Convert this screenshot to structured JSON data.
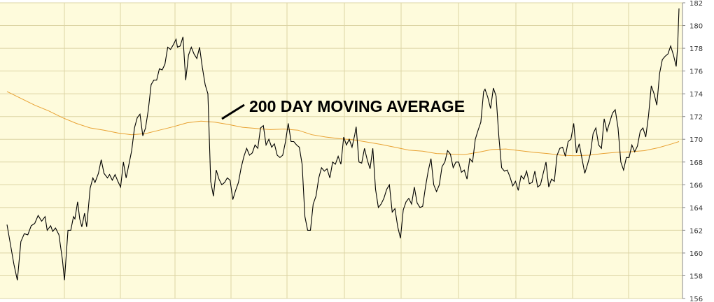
{
  "chart_data": {
    "type": "line",
    "title": "",
    "xlabel": "",
    "ylabel": "",
    "ylim": [
      156,
      182
    ],
    "yticks": [
      "156",
      "158",
      "160",
      "162",
      "164",
      "166",
      "168",
      "170",
      "172",
      "174",
      "176",
      "178",
      "180",
      "182"
    ],
    "grid": true,
    "x": [
      0,
      2,
      4,
      6,
      8,
      10,
      12,
      14,
      16,
      18,
      20,
      22,
      24,
      26,
      28,
      30,
      32,
      34,
      36,
      38,
      40,
      42,
      44,
      46,
      48,
      50,
      52,
      54,
      56,
      58,
      60,
      62,
      64,
      66,
      68,
      70,
      72,
      74,
      76,
      78,
      80,
      82,
      84,
      86,
      88,
      90,
      92,
      94,
      96,
      98,
      100,
      102,
      104,
      106,
      108,
      110,
      112,
      114,
      116,
      118,
      120,
      122,
      124,
      126,
      128,
      130,
      132,
      134,
      136,
      138,
      140,
      142,
      144,
      146,
      148,
      150,
      152,
      154,
      156,
      158,
      160,
      162,
      164,
      166,
      168,
      170,
      172,
      174,
      176,
      178,
      180,
      182,
      184,
      186,
      188,
      190,
      192,
      194,
      196,
      198,
      200,
      202,
      204,
      206,
      208,
      210,
      212,
      214,
      216,
      218,
      220,
      222,
      224,
      226,
      228,
      230,
      232,
      234,
      236,
      238,
      240,
      242,
      244,
      246,
      248,
      250,
      252,
      254,
      256,
      258,
      260,
      262,
      264,
      266,
      268,
      270,
      272,
      274,
      276,
      278,
      280,
      282,
      284,
      286,
      288,
      290,
      292,
      294,
      296,
      298,
      300,
      302,
      304,
      306,
      308,
      310,
      312,
      314,
      316,
      318,
      320,
      322,
      324,
      326,
      328,
      330,
      332,
      334,
      336,
      338,
      340,
      342,
      344,
      346,
      348,
      350,
      352,
      354,
      356,
      358,
      360,
      362,
      364,
      366,
      368,
      370,
      372,
      374,
      376,
      378,
      380,
      382,
      384,
      386,
      388,
      390,
      392,
      394,
      396,
      398,
      400,
      402,
      404,
      406,
      408,
      410,
      412,
      414,
      416,
      418,
      420,
      422,
      424,
      426,
      428,
      430,
      432,
      434,
      436,
      438,
      440,
      442,
      444,
      446,
      448,
      450,
      452,
      454,
      456,
      458,
      460,
      462,
      464,
      466,
      468,
      470,
      472,
      474,
      476,
      478,
      480,
      482,
      484,
      486,
      488,
      490,
      492,
      494,
      496,
      498,
      500,
      502,
      504,
      506,
      508,
      510,
      512,
      514,
      516,
      518,
      520,
      522,
      524,
      526,
      528,
      530,
      532,
      534,
      536,
      538,
      540,
      542,
      544,
      546,
      548,
      550,
      552,
      554,
      556,
      558,
      560,
      562,
      564,
      566,
      568,
      570,
      572,
      574,
      576,
      578,
      580,
      582,
      584,
      586,
      588,
      590,
      592,
      594,
      596,
      598,
      600,
      602,
      604,
      606,
      608,
      610,
      612,
      614,
      616,
      618,
      620,
      622,
      624,
      626,
      628,
      630,
      632,
      634,
      636,
      638,
      640,
      642,
      644,
      646,
      648,
      650,
      652,
      654,
      656,
      658,
      660,
      662,
      664,
      666,
      668,
      670,
      672,
      674,
      676,
      678,
      680,
      682,
      684,
      686,
      688,
      690,
      692,
      694,
      696,
      698,
      700,
      702,
      704,
      706,
      708,
      710,
      712,
      714,
      716,
      718,
      720,
      722,
      724,
      726,
      728,
      730,
      732,
      734,
      736,
      738,
      740,
      742,
      744,
      746,
      748,
      750,
      752,
      754,
      756,
      758,
      760,
      762,
      764,
      766,
      768,
      770,
      772,
      774,
      776,
      778,
      780,
      782,
      784,
      786,
      788,
      790,
      792,
      794,
      796,
      798,
      800,
      802,
      804,
      806,
      808,
      810,
      812,
      814,
      816,
      818,
      820,
      822,
      824,
      826,
      828,
      830,
      832,
      834,
      836,
      838,
      840,
      842,
      844,
      846,
      848,
      850,
      852,
      854,
      856,
      858,
      860,
      862,
      864,
      866,
      868,
      870,
      872,
      874,
      876,
      878,
      880,
      882,
      884,
      886,
      888,
      890,
      892,
      894,
      896,
      898,
      900,
      902,
      904,
      906,
      908,
      910,
      912,
      914,
      916,
      918,
      920,
      922,
      924,
      926,
      928,
      930,
      932,
      934,
      936,
      938,
      940,
      942,
      944,
      946,
      948,
      950,
      952,
      954,
      956,
      958,
      960,
      962,
      964,
      966,
      968,
      970
    ],
    "price_points": [
      [
        0,
        162.5
      ],
      [
        10,
        159
      ],
      [
        15,
        157.6
      ],
      [
        20,
        161
      ],
      [
        25,
        161.7
      ],
      [
        30,
        161.6
      ],
      [
        35,
        162.4
      ],
      [
        40,
        162.6
      ],
      [
        45,
        163.3
      ],
      [
        50,
        162.8
      ],
      [
        55,
        163.2
      ],
      [
        58,
        162
      ],
      [
        63,
        162.4
      ],
      [
        66,
        161.9
      ],
      [
        70,
        162.2
      ],
      [
        75,
        161.6
      ],
      [
        80,
        159.4
      ],
      [
        83,
        157.6
      ],
      [
        88,
        162
      ],
      [
        92,
        162
      ],
      [
        96,
        163.2
      ],
      [
        98,
        163
      ],
      [
        102,
        164.5
      ],
      [
        105,
        163
      ],
      [
        108,
        162.3
      ],
      [
        112,
        163.5
      ],
      [
        115,
        162.3
      ],
      [
        120,
        165.7
      ],
      [
        124,
        166.6
      ],
      [
        127,
        166.2
      ],
      [
        132,
        167
      ],
      [
        136,
        168.2
      ],
      [
        140,
        167
      ],
      [
        145,
        166.6
      ],
      [
        148,
        166.9
      ],
      [
        152,
        166.4
      ],
      [
        156,
        166.9
      ],
      [
        160,
        166.3
      ],
      [
        164,
        165.8
      ],
      [
        168,
        168
      ],
      [
        172,
        166.6
      ],
      [
        176,
        167.8
      ],
      [
        180,
        169
      ],
      [
        184,
        171
      ],
      [
        188,
        171.9
      ],
      [
        192,
        172.2
      ],
      [
        196,
        170.3
      ],
      [
        200,
        171
      ],
      [
        204,
        172.6
      ],
      [
        208,
        174.8
      ],
      [
        212,
        175.2
      ],
      [
        216,
        175.2
      ],
      [
        220,
        176.2
      ],
      [
        224,
        176.1
      ],
      [
        228,
        176.6
      ],
      [
        232,
        178.1
      ],
      [
        236,
        177.9
      ],
      [
        240,
        178.3
      ],
      [
        244,
        178.8
      ],
      [
        246,
        178.1
      ],
      [
        250,
        178.2
      ],
      [
        254,
        179
      ],
      [
        258,
        175.2
      ],
      [
        262,
        177.4
      ],
      [
        266,
        178.1
      ],
      [
        270,
        177.5
      ],
      [
        274,
        177.1
      ],
      [
        278,
        178.1
      ],
      [
        282,
        176.3
      ],
      [
        286,
        174.8
      ],
      [
        290,
        174
      ],
      [
        294,
        166.3
      ],
      [
        298,
        165
      ],
      [
        302,
        167.3
      ],
      [
        306,
        166.5
      ],
      [
        310,
        166
      ],
      [
        314,
        166.2
      ],
      [
        318,
        166.6
      ],
      [
        322,
        166.4
      ],
      [
        326,
        164.7
      ],
      [
        330,
        165.5
      ],
      [
        334,
        166.2
      ],
      [
        338,
        167.5
      ],
      [
        342,
        168.5
      ],
      [
        346,
        169.2
      ],
      [
        350,
        168.6
      ],
      [
        354,
        168.8
      ],
      [
        358,
        169.5
      ],
      [
        362,
        169.2
      ],
      [
        366,
        171
      ],
      [
        370,
        171.2
      ],
      [
        374,
        169.5
      ],
      [
        378,
        170
      ],
      [
        382,
        169.3
      ],
      [
        386,
        169.6
      ],
      [
        390,
        168.6
      ],
      [
        394,
        168.4
      ],
      [
        398,
        168.6
      ],
      [
        402,
        169.8
      ],
      [
        406,
        171.4
      ],
      [
        410,
        169.8
      ],
      [
        414,
        169.8
      ],
      [
        418,
        169.5
      ],
      [
        422,
        169.3
      ],
      [
        426,
        167.8
      ],
      [
        430,
        163.2
      ],
      [
        434,
        162
      ],
      [
        438,
        162
      ],
      [
        442,
        164.3
      ],
      [
        446,
        165
      ],
      [
        450,
        166.6
      ],
      [
        454,
        167.5
      ],
      [
        458,
        167.2
      ],
      [
        462,
        167.4
      ],
      [
        466,
        166.6
      ],
      [
        470,
        168
      ],
      [
        474,
        167.8
      ],
      [
        478,
        168.5
      ],
      [
        482,
        167.8
      ],
      [
        486,
        170.2
      ],
      [
        490,
        169.5
      ],
      [
        494,
        170
      ],
      [
        498,
        169.3
      ],
      [
        502,
        170.4
      ],
      [
        504,
        171.1
      ],
      [
        508,
        168
      ],
      [
        512,
        167.9
      ],
      [
        516,
        169.2
      ],
      [
        520,
        168.2
      ],
      [
        524,
        167.4
      ],
      [
        528,
        169.2
      ],
      [
        532,
        165.6
      ],
      [
        536,
        164
      ],
      [
        540,
        164.3
      ],
      [
        544,
        164.8
      ],
      [
        548,
        165.6
      ],
      [
        552,
        166
      ],
      [
        556,
        163.6
      ],
      [
        560,
        163.9
      ],
      [
        564,
        162.3
      ],
      [
        568,
        161.3
      ],
      [
        572,
        163.8
      ],
      [
        576,
        164.5
      ],
      [
        580,
        164.8
      ],
      [
        584,
        164.3
      ],
      [
        588,
        165.8
      ],
      [
        592,
        164.4
      ],
      [
        596,
        164
      ],
      [
        600,
        164.1
      ],
      [
        604,
        165.8
      ],
      [
        608,
        167.2
      ],
      [
        612,
        168.3
      ],
      [
        616,
        166
      ],
      [
        620,
        165.4
      ],
      [
        624,
        166
      ],
      [
        628,
        167.6
      ],
      [
        632,
        168
      ],
      [
        636,
        169
      ],
      [
        640,
        168.7
      ],
      [
        644,
        167.5
      ],
      [
        648,
        168
      ],
      [
        652,
        168
      ],
      [
        656,
        167.1
      ],
      [
        660,
        167.3
      ],
      [
        664,
        166.5
      ],
      [
        668,
        168.3
      ],
      [
        672,
        168
      ],
      [
        676,
        170
      ],
      [
        680,
        170.8
      ],
      [
        684,
        171.5
      ],
      [
        688,
        174.2
      ],
      [
        690,
        174.4
      ],
      [
        694,
        173.7
      ],
      [
        698,
        172.7
      ],
      [
        702,
        174.5
      ],
      [
        706,
        173.8
      ],
      [
        710,
        170.2
      ],
      [
        714,
        167.5
      ],
      [
        718,
        167.2
      ],
      [
        722,
        167.3
      ],
      [
        726,
        166.7
      ],
      [
        730,
        165.9
      ],
      [
        734,
        166.3
      ],
      [
        738,
        165.5
      ],
      [
        742,
        166.8
      ],
      [
        746,
        166.5
      ],
      [
        750,
        167.2
      ],
      [
        754,
        166.1
      ],
      [
        758,
        166.2
      ],
      [
        762,
        167.2
      ],
      [
        766,
        165.8
      ],
      [
        770,
        166
      ],
      [
        774,
        167
      ],
      [
        778,
        168
      ],
      [
        782,
        165.8
      ],
      [
        786,
        166.5
      ],
      [
        790,
        166.3
      ],
      [
        794,
        168.6
      ],
      [
        798,
        169.2
      ],
      [
        802,
        169.3
      ],
      [
        806,
        168.5
      ],
      [
        810,
        169.8
      ],
      [
        814,
        170
      ],
      [
        818,
        171.4
      ],
      [
        822,
        168.8
      ],
      [
        826,
        169.6
      ],
      [
        830,
        168.3
      ],
      [
        834,
        167
      ],
      [
        838,
        167.8
      ],
      [
        842,
        168.7
      ],
      [
        846,
        170.5
      ],
      [
        850,
        171
      ],
      [
        854,
        169.5
      ],
      [
        858,
        169.2
      ],
      [
        862,
        171.8
      ],
      [
        866,
        170.7
      ],
      [
        870,
        171.5
      ],
      [
        874,
        172.3
      ],
      [
        878,
        172.6
      ],
      [
        882,
        171
      ],
      [
        886,
        168
      ],
      [
        890,
        167.3
      ],
      [
        894,
        168.4
      ],
      [
        898,
        168.4
      ],
      [
        902,
        169.5
      ],
      [
        906,
        168.9
      ],
      [
        910,
        169.4
      ],
      [
        914,
        170.7
      ],
      [
        918,
        171
      ],
      [
        922,
        170.2
      ],
      [
        926,
        172.1
      ],
      [
        930,
        174.7
      ],
      [
        934,
        174
      ],
      [
        938,
        173
      ],
      [
        942,
        175.8
      ],
      [
        946,
        177
      ],
      [
        950,
        177.3
      ],
      [
        954,
        177.5
      ],
      [
        958,
        178.2
      ],
      [
        962,
        177.4
      ],
      [
        966,
        176.4
      ],
      [
        968,
        178.1
      ],
      [
        970,
        181.5
      ]
    ],
    "series": [
      {
        "name": "",
        "color": "#000000",
        "kind": "price"
      },
      {
        "name": "200 DAY MOVING AVERAGE",
        "color": "#e8a132",
        "kind": "ma",
        "points": [
          [
            0,
            174.2
          ],
          [
            20,
            173.6
          ],
          [
            40,
            173
          ],
          [
            60,
            172.5
          ],
          [
            80,
            171.9
          ],
          [
            100,
            171.4
          ],
          [
            120,
            171
          ],
          [
            140,
            170.8
          ],
          [
            160,
            170.55
          ],
          [
            180,
            170.4
          ],
          [
            200,
            170.5
          ],
          [
            220,
            170.8
          ],
          [
            240,
            171.1
          ],
          [
            260,
            171.45
          ],
          [
            280,
            171.6
          ],
          [
            300,
            171.5
          ],
          [
            320,
            171.3
          ],
          [
            340,
            171.05
          ],
          [
            360,
            170.95
          ],
          [
            380,
            170.85
          ],
          [
            400,
            170.9
          ],
          [
            420,
            170.8
          ],
          [
            440,
            170.4
          ],
          [
            460,
            170.2
          ],
          [
            480,
            170.05
          ],
          [
            500,
            169.95
          ],
          [
            520,
            169.75
          ],
          [
            540,
            169.55
          ],
          [
            560,
            169.3
          ],
          [
            580,
            169.05
          ],
          [
            600,
            168.95
          ],
          [
            620,
            168.75
          ],
          [
            640,
            168.7
          ],
          [
            660,
            168.65
          ],
          [
            680,
            168.85
          ],
          [
            700,
            169.1
          ],
          [
            720,
            169.15
          ],
          [
            740,
            169
          ],
          [
            760,
            168.85
          ],
          [
            780,
            168.75
          ],
          [
            800,
            168.6
          ],
          [
            820,
            168.55
          ],
          [
            840,
            168.6
          ],
          [
            860,
            168.75
          ],
          [
            880,
            168.85
          ],
          [
            900,
            168.9
          ],
          [
            920,
            169
          ],
          [
            940,
            169.25
          ],
          [
            960,
            169.6
          ],
          [
            970,
            169.8
          ]
        ]
      }
    ],
    "annotation": "200 DAY MOVING AVERAGE"
  },
  "colors": {
    "plot_bg": "#fefbdc",
    "grid": "#dcd4a4",
    "axis": "#888888",
    "price_line": "#000000",
    "ma_line": "#e8a132"
  }
}
